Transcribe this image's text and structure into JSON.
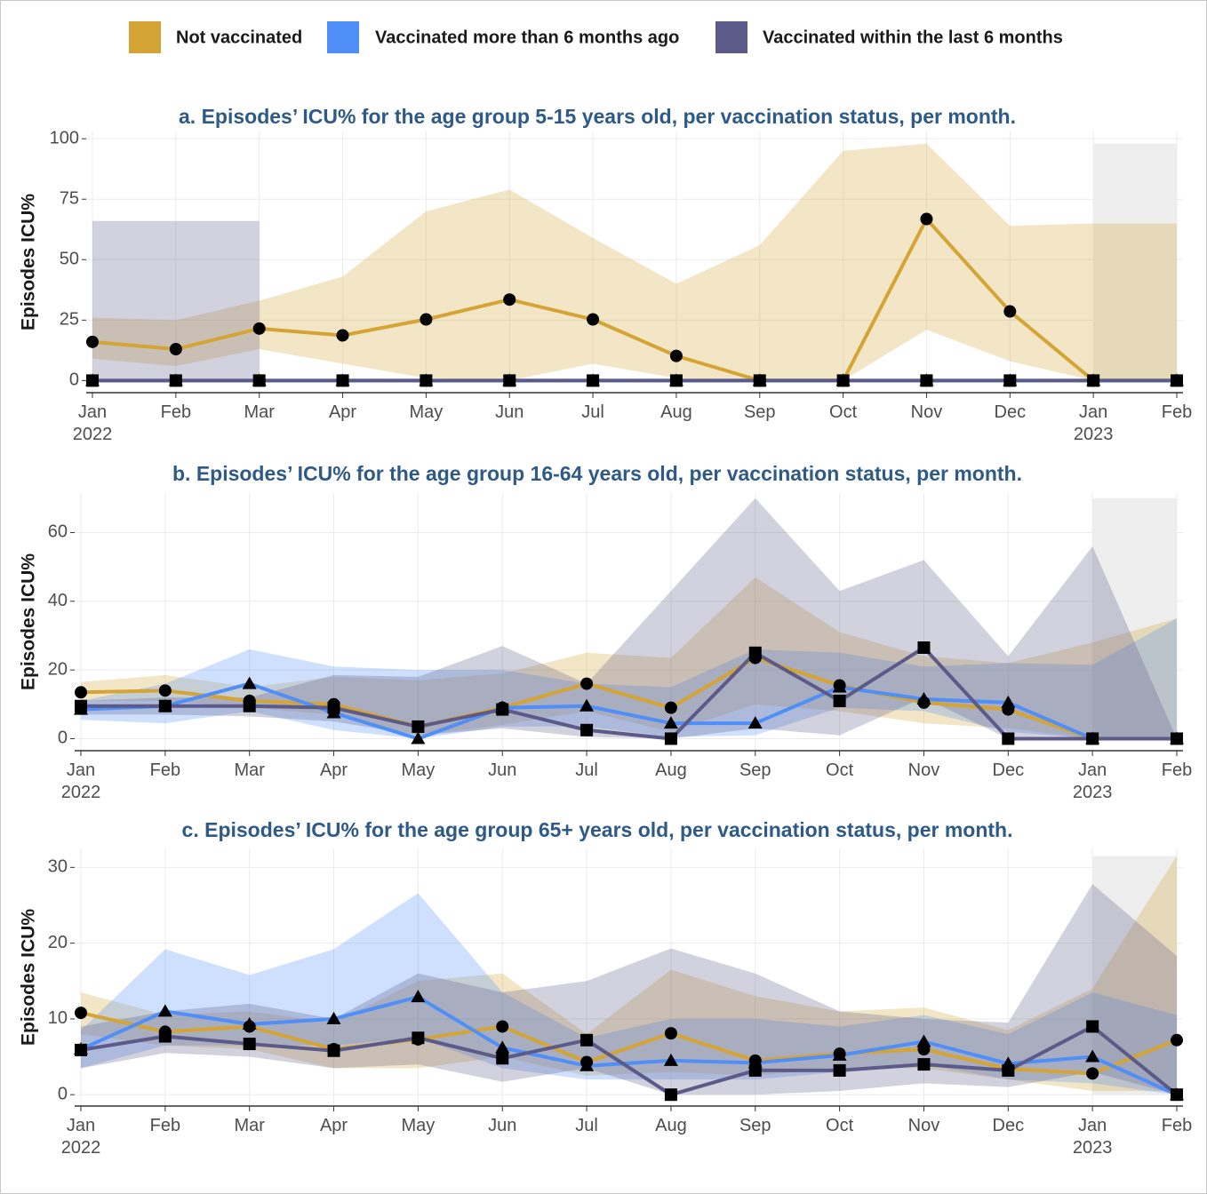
{
  "chart_data": [
    {
      "type": "line",
      "title": "a. Episodes’ ICU% for the age group 5-15 years old, per vaccination status, per month.",
      "y_label": "Episodes  ICU%",
      "categories": [
        "Jan\n2022",
        "Feb",
        "Mar",
        "Apr",
        "May",
        "Jun",
        "Jul",
        "Aug",
        "Sep",
        "Oct",
        "Nov",
        "Dec",
        "Jan\n2023",
        "Feb"
      ],
      "ylim": [
        -5,
        103
      ],
      "yticks": [
        0,
        25,
        50,
        75,
        100
      ],
      "grid": true,
      "shade": {
        "x": [
          12,
          13
        ],
        "top": 98,
        "color": "#ebebeb"
      },
      "series": [
        {
          "name": "Not vaccinated",
          "color": "#d4a435",
          "marker": "circle",
          "values": [
            16,
            13,
            21.5,
            18.7,
            25.3,
            33.5,
            25.3,
            10.2,
            0,
            0,
            66.8,
            28.6,
            0,
            null
          ],
          "lower": [
            9,
            6,
            13,
            7,
            1,
            0,
            7,
            1,
            0,
            0,
            21,
            8,
            0,
            0
          ],
          "upper": [
            26,
            25,
            33,
            43,
            70,
            79,
            59,
            40,
            56,
            95,
            98,
            64,
            65,
            65
          ]
        },
        {
          "name": "Vaccinated more than 6 months ago",
          "color": "#4f8ff7",
          "marker": "triangle",
          "values": [
            0,
            0,
            0,
            0,
            0,
            0,
            0,
            0,
            0,
            0,
            0,
            0,
            0,
            0
          ],
          "lower": [
            null,
            null,
            null,
            null,
            null,
            null,
            null,
            null,
            null,
            null,
            null,
            null,
            null,
            null
          ],
          "upper": [
            null,
            null,
            null,
            null,
            null,
            null,
            null,
            null,
            null,
            null,
            null,
            null,
            null,
            null
          ]
        },
        {
          "name": "Vaccinated within the last 6 months",
          "color": "#5c5a88",
          "marker": "square",
          "values": [
            0,
            0,
            0,
            0,
            0,
            0,
            0,
            0,
            0,
            0,
            0,
            0,
            0,
            0
          ],
          "lower": [
            0,
            0,
            0,
            null,
            null,
            null,
            null,
            null,
            null,
            null,
            null,
            null,
            null,
            null
          ],
          "upper": [
            66,
            66,
            66,
            null,
            null,
            null,
            null,
            null,
            null,
            null,
            null,
            null,
            null,
            null
          ]
        }
      ]
    },
    {
      "type": "line",
      "title": "b. Episodes’ ICU% for the age group 16-64 years old, per vaccination status, per month.",
      "y_label": "Episodes  ICU%",
      "categories": [
        "Jan\n2022",
        "Feb",
        "Mar",
        "Apr",
        "May",
        "Jun",
        "Jul",
        "Aug",
        "Sep",
        "Oct",
        "Nov",
        "Dec",
        "Jan\n2023",
        "Feb"
      ],
      "ylim": [
        -3.5,
        71.5
      ],
      "yticks": [
        0,
        20,
        40,
        60
      ],
      "grid": true,
      "shade": {
        "x": [
          12,
          13
        ],
        "top": 70,
        "color": "#ebebeb"
      },
      "series": [
        {
          "color": "#d4a435",
          "marker": "circle",
          "values": [
            13.5,
            14,
            11,
            10,
            3.5,
            9,
            16,
            9,
            23.5,
            15.5,
            10.5,
            8.5,
            0,
            0
          ],
          "lower": [
            11,
            11,
            9,
            7,
            1,
            4,
            8,
            2,
            10,
            8,
            4.5,
            3,
            0,
            0
          ],
          "upper": [
            16.5,
            18.5,
            15,
            18,
            17,
            19,
            25,
            23.5,
            47,
            31,
            24,
            22,
            28,
            35
          ]
        },
        {
          "color": "#4f8ff7",
          "marker": "triangle",
          "values": [
            8.5,
            9.5,
            16,
            7.5,
            0,
            9,
            9.5,
            4.5,
            4.5,
            15,
            11.5,
            10.5,
            0,
            0
          ],
          "lower": [
            5.5,
            4.5,
            8,
            2.5,
            0,
            3.5,
            3.5,
            0.5,
            1,
            9,
            8,
            2,
            0,
            0
          ],
          "upper": [
            11,
            16,
            26,
            21,
            20,
            20,
            16,
            15,
            26,
            25,
            21,
            22,
            21.5,
            35
          ]
        },
        {
          "color": "#5c5a88",
          "marker": "square",
          "values": [
            9.5,
            9.5,
            9.5,
            9,
            3.5,
            8.5,
            2.5,
            0,
            25,
            11,
            26.5,
            0,
            0,
            0
          ],
          "lower": [
            7,
            7,
            6.5,
            5,
            1,
            3,
            0.5,
            0,
            3,
            1,
            12,
            0,
            0,
            0
          ],
          "upper": [
            11,
            12,
            12,
            18.5,
            18,
            27,
            16,
            43,
            70,
            43,
            52,
            24,
            56,
            0
          ]
        }
      ]
    },
    {
      "type": "line",
      "title": "c. Episodes’ ICU% for the age group 65+ years old, per vaccination status, per month.",
      "y_label": "Episodes  ICU%",
      "categories": [
        "Jan\n2022",
        "Feb",
        "Mar",
        "Apr",
        "May",
        "Jun",
        "Jul",
        "Aug",
        "Sep",
        "Oct",
        "Nov",
        "Dec",
        "Jan\n2023",
        "Feb"
      ],
      "ylim": [
        -1.5,
        32.5
      ],
      "yticks": [
        0,
        10,
        20,
        30
      ],
      "grid": true,
      "shade": {
        "x": [
          12,
          13
        ],
        "top": 31.5,
        "color": "#ebebeb"
      },
      "series": [
        {
          "color": "#d4a435",
          "marker": "circle",
          "values": [
            10.8,
            8.3,
            9,
            6,
            7.3,
            9,
            4.3,
            8.1,
            4.5,
            5.4,
            6,
            3.4,
            2.8,
            7.2
          ],
          "lower": [
            8,
            6.5,
            6,
            3.5,
            3.5,
            5,
            2.5,
            3,
            2.5,
            3.5,
            3.5,
            2,
            0.5,
            0.5
          ],
          "upper": [
            13.5,
            10.5,
            11,
            9.5,
            15,
            16,
            8,
            16.5,
            13,
            11,
            11.5,
            8.5,
            14,
            31.5
          ]
        },
        {
          "color": "#4f8ff7",
          "marker": "triangle",
          "values": [
            6,
            11,
            9.3,
            10,
            12.9,
            6.2,
            3.8,
            4.5,
            4.2,
            5.2,
            7,
            4.1,
            5,
            0
          ],
          "lower": [
            3.5,
            6.5,
            6.5,
            6.5,
            7.5,
            3.5,
            2,
            2,
            2,
            3,
            4,
            2,
            1.5,
            0
          ],
          "upper": [
            8.5,
            19.2,
            15.8,
            19.2,
            26.6,
            13.5,
            7.5,
            10,
            10,
            9,
            10.5,
            8,
            13.5,
            10.5
          ]
        },
        {
          "color": "#5c5a88",
          "marker": "square",
          "values": [
            5.9,
            7.7,
            6.7,
            5.8,
            7.5,
            4.8,
            7.2,
            0,
            3.2,
            3.2,
            4,
            3.2,
            9,
            0
          ],
          "lower": [
            3.5,
            5.5,
            5,
            3.5,
            4,
            1.7,
            3.5,
            0,
            0,
            0.5,
            1.5,
            1,
            3,
            0
          ],
          "upper": [
            9,
            11,
            12,
            10,
            16,
            13.5,
            15,
            19.3,
            16,
            11,
            10,
            9.5,
            27.8,
            18.3
          ]
        }
      ]
    }
  ]
}
